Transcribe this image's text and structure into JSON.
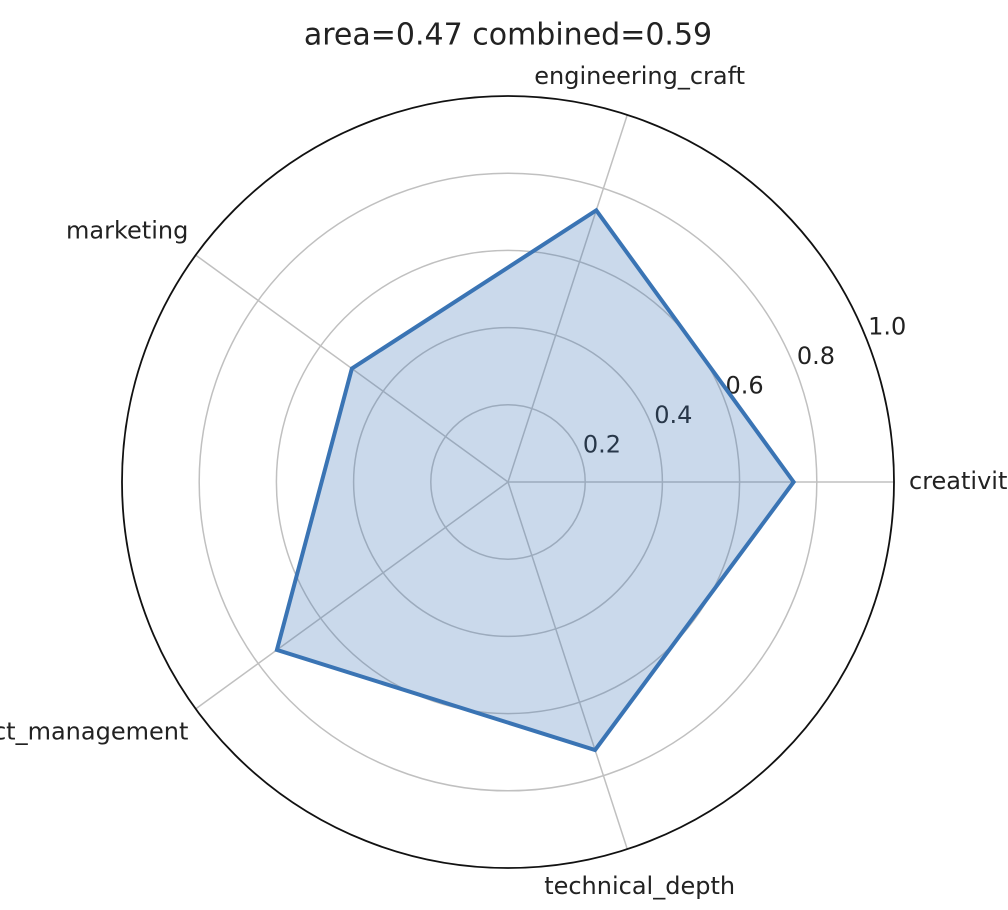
{
  "chart_data": {
    "type": "radar",
    "title": "area=0.47 combined=0.59",
    "categories": [
      "creativity",
      "engineering_craft",
      "marketing",
      "project_management",
      "technical_depth"
    ],
    "series": [
      {
        "color": "#3a74b4",
        "values": [
          0.74,
          0.74,
          0.5,
          0.74,
          0.73
        ]
      }
    ],
    "ylim": [
      0,
      1
    ],
    "yticks": [
      0.2,
      0.4,
      0.6,
      0.8,
      {
        "value": 1,
        "label": "1.0"
      }
    ],
    "grid": true
  }
}
